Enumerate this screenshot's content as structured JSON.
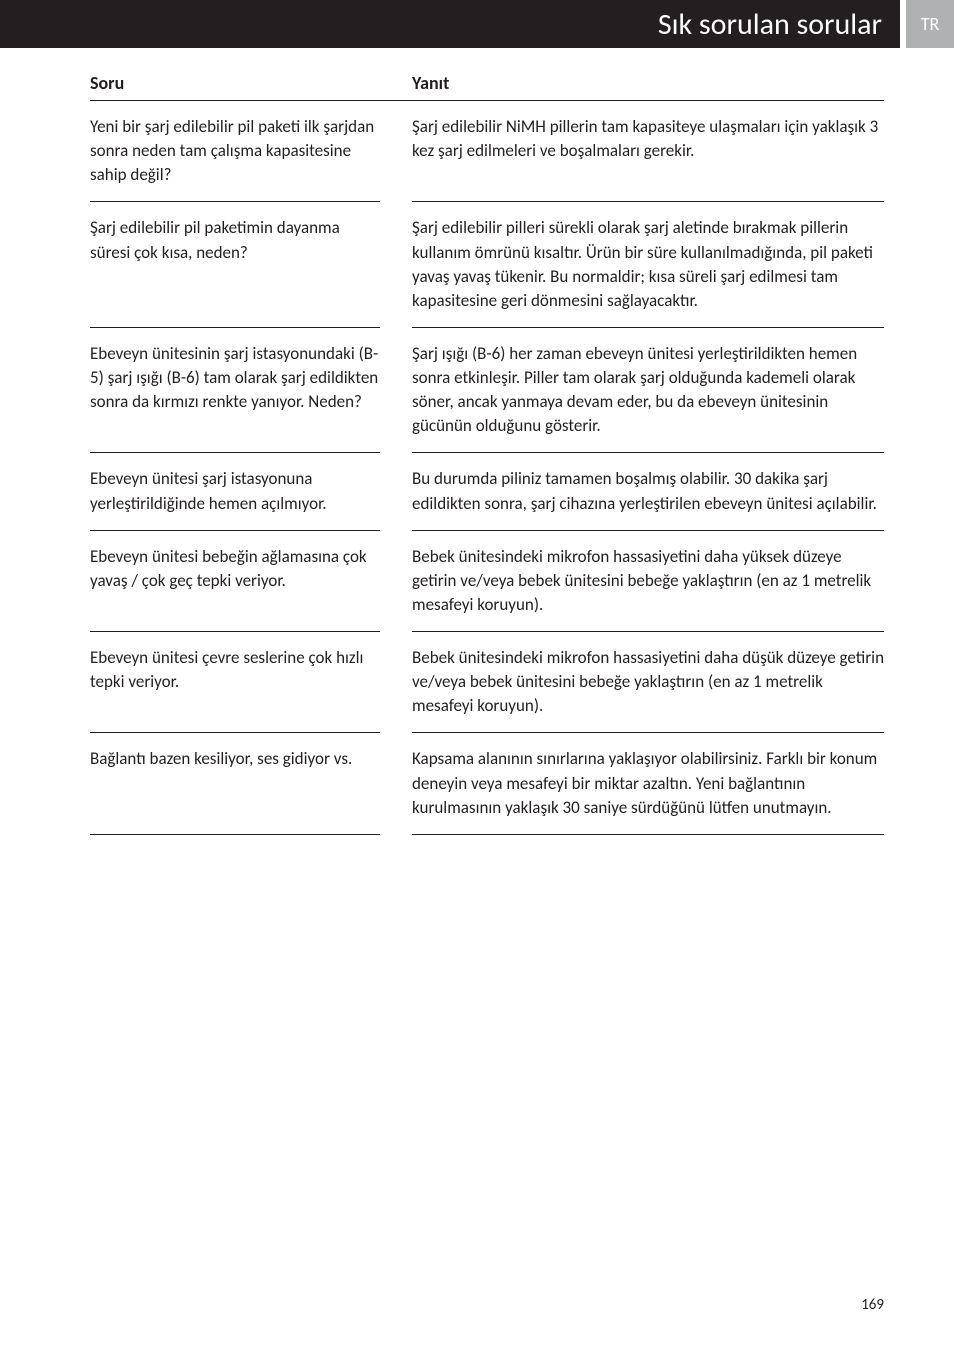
{
  "header": {
    "title": "Sık sorulan sorular",
    "badge": "TR"
  },
  "table": {
    "q_header": "Soru",
    "a_header": "Yanıt"
  },
  "rows": [
    {
      "q": "Yeni bir şarj edilebilir pil paketi ilk şarjdan sonra neden tam çalışma kapasitesine sahip değil?",
      "a": "Şarj edilebilir NiMH pillerin tam kapasiteye ulaşmaları için yaklaşık 3 kez şarj edilmeleri ve boşalmaları gerekir."
    },
    {
      "q": "Şarj edilebilir pil paketimin dayanma süresi çok kısa, neden?",
      "a": "Şarj edilebilir pilleri sürekli olarak şarj aletinde bırakmak pillerin kullanım ömrünü kısaltır. Ürün bir süre kullanılmadığında, pil paketi yavaş yavaş tükenir. Bu normaldir; kısa süreli şarj edilmesi tam kapasitesine geri dönmesini sağlayacaktır."
    },
    {
      "q": "Ebeveyn ünitesinin şarj istasyonundaki (B-5) şarj ışığı (B-6) tam olarak şarj edildikten sonra da kırmızı renkte yanıyor. Neden?",
      "a": "Şarj ışığı (B-6) her zaman ebeveyn ünitesi yerleştirildikten hemen sonra etkinleşir. Piller tam olarak şarj olduğunda kademeli olarak söner, ancak yanmaya devam eder, bu da ebeveyn ünitesinin gücünün olduğunu gösterir."
    },
    {
      "q": "Ebeveyn ünitesi şarj istasyonuna yerleştirildiğinde hemen açılmıyor.",
      "a": "Bu durumda piliniz tamamen boşalmış olabilir. 30 dakika şarj edildikten sonra, şarj cihazına yerleştirilen ebeveyn ünitesi açılabilir."
    },
    {
      "q": "Ebeveyn ünitesi bebeğin ağlamasına çok yavaş / çok geç tepki veriyor.",
      "a": "Bebek ünitesindeki mikrofon hassasiyetini daha yüksek düzeye getirin ve/veya bebek ünitesini bebeğe yaklaştırın (en az 1 metrelik mesafeyi koruyun)."
    },
    {
      "q": "Ebeveyn ünitesi çevre seslerine çok hızlı tepki veriyor.",
      "a": "Bebek ünitesindeki mikrofon hassasiyetini daha düşük düzeye getirin ve/veya bebek ünitesini bebeğe yaklaştırın (en az 1 metrelik mesafeyi koruyun)."
    },
    {
      "q": "Bağlantı bazen kesiliyor, ses gidiyor vs.",
      "a": "Kapsama alanının sınırlarına yaklaşıyor olabilirsiniz. Farklı bir konum deneyin veya mesafeyi bir miktar azaltın. Yeni bağlantının kurulmasının yaklaşık 30 saniye sürdüğünü lütfen unutmayın."
    }
  ],
  "page_number": "169"
}
